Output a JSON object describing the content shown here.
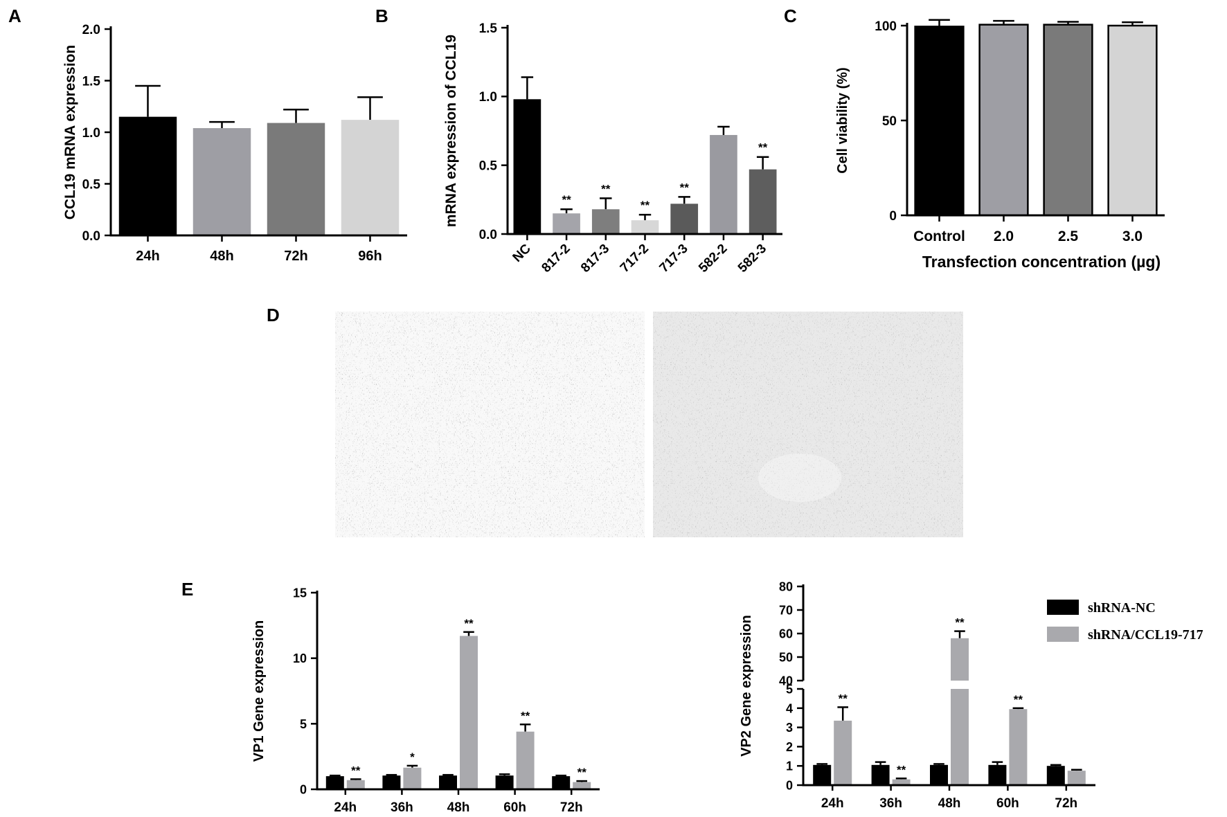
{
  "panel_letters": [
    "A",
    "B",
    "C",
    "D",
    "E"
  ],
  "chart_data": [
    {
      "panel": "A",
      "type": "bar",
      "ylabel": "CCL19 mRNA expression",
      "categories": [
        "24h",
        "48h",
        "72h",
        "96h"
      ],
      "values": [
        1.15,
        1.04,
        1.09,
        1.12
      ],
      "errors": [
        0.3,
        0.06,
        0.13,
        0.22
      ],
      "colors": [
        "#000000",
        "#9e9ea4",
        "#7a7a7a",
        "#d4d4d4"
      ],
      "ylim": [
        0,
        2.0
      ],
      "yticks": [
        "0.0",
        "0.5",
        "1.0",
        "1.5",
        "2.0"
      ],
      "significance": [
        "",
        "",
        "",
        ""
      ]
    },
    {
      "panel": "B",
      "type": "bar",
      "ylabel": "mRNA expression of CCL19",
      "categories": [
        "NC",
        "817-2",
        "817-3",
        "717-2",
        "717-3",
        "582-2",
        "582-3"
      ],
      "values": [
        0.98,
        0.15,
        0.18,
        0.1,
        0.22,
        0.72,
        0.47
      ],
      "errors": [
        0.16,
        0.03,
        0.08,
        0.04,
        0.05,
        0.06,
        0.09
      ],
      "colors": [
        "#000000",
        "#a4a4aa",
        "#7e7e7e",
        "#d7d7d7",
        "#5a5a5a",
        "#9a9aa0",
        "#5e5e5e"
      ],
      "ylim": [
        0,
        1.5
      ],
      "yticks": [
        "0.0",
        "0.5",
        "1.0",
        "1.5"
      ],
      "significance": [
        "",
        "**",
        "**",
        "**",
        "**",
        "",
        "**"
      ]
    },
    {
      "panel": "C",
      "type": "bar",
      "ylabel": "Cell viability (%)",
      "xlabel": "Transfection concentration (µg)",
      "categories": [
        "Control",
        "2.0",
        "2.5",
        "3.0"
      ],
      "values": [
        99.5,
        100.5,
        100.5,
        100
      ],
      "errors": [
        3.5,
        2.0,
        1.5,
        1.8
      ],
      "colors": [
        "#000000",
        "#9e9ea4",
        "#7a7a7a",
        "#d4d4d4"
      ],
      "ylim": [
        0,
        100
      ],
      "yticks": [
        "0",
        "50",
        "100"
      ],
      "significance": [
        "",
        "",
        "",
        ""
      ]
    },
    {
      "panel": "E",
      "type": "bar",
      "ylabel": "VP1 Gene expression",
      "categories": [
        "24h",
        "36h",
        "48h",
        "60h",
        "72h"
      ],
      "series": [
        {
          "name": "shRNA-NC",
          "values": [
            1.0,
            1.05,
            1.05,
            1.05,
            1.0
          ],
          "errors": [
            0.05,
            0.05,
            0.05,
            0.1,
            0.05
          ],
          "color": "#000000"
        },
        {
          "name": "shRNA/CCL19-717",
          "values": [
            0.7,
            1.65,
            11.7,
            4.4,
            0.55
          ],
          "errors": [
            0.07,
            0.15,
            0.3,
            0.55,
            0.08
          ],
          "color": "#a9a9ad"
        }
      ],
      "significance": [
        "**",
        "*",
        "**",
        "**",
        "**"
      ],
      "ylim": [
        0,
        15
      ],
      "yticks": [
        "0",
        "5",
        "10",
        "15"
      ]
    },
    {
      "panel": "E",
      "type": "bar",
      "ylabel": "VP2 Gene expression",
      "categories": [
        "24h",
        "36h",
        "48h",
        "60h",
        "72h"
      ],
      "series": [
        {
          "name": "shRNA-NC",
          "values": [
            1.05,
            1.05,
            1.05,
            1.05,
            1.0
          ],
          "errors": [
            0.05,
            0.15,
            0.05,
            0.15,
            0.05
          ],
          "color": "#000000"
        },
        {
          "name": "shRNA/CCL19-717",
          "values": [
            3.35,
            0.3,
            58,
            3.95,
            0.75
          ],
          "errors": [
            0.7,
            0.05,
            3.0,
            0.05,
            0.05
          ],
          "color": "#a9a9ad"
        }
      ],
      "significance": [
        "**",
        "**",
        "**",
        "**",
        ""
      ],
      "axis_break": {
        "lower_range": [
          0,
          5
        ],
        "upper_range": [
          40,
          80
        ]
      },
      "yticks_lower": [
        "0",
        "1",
        "2",
        "3",
        "4",
        "5"
      ],
      "yticks_upper": [
        "40",
        "50",
        "60",
        "70",
        "80"
      ]
    }
  ],
  "legend": {
    "placement": "top-right",
    "items": [
      {
        "label": "shRNA-NC",
        "color": "#000000"
      },
      {
        "label": "shRNA/CCL19-717",
        "color": "#a9a9ad"
      }
    ]
  }
}
